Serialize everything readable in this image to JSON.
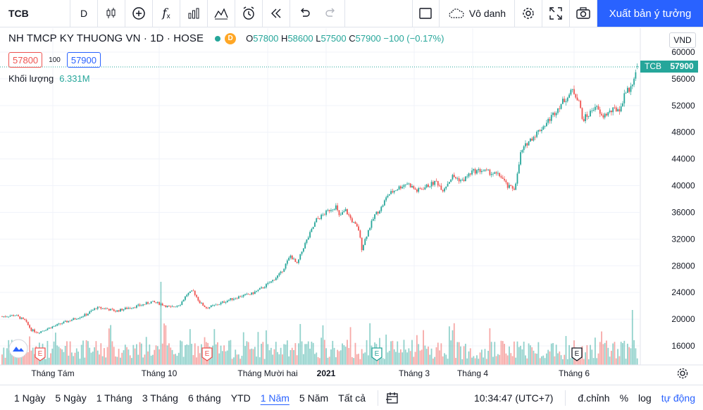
{
  "toolbar": {
    "symbol": "TCB",
    "interval": "D",
    "fx_label": "f",
    "fx_sub": "x",
    "layout_name": "Vô danh",
    "publish_label": "Xuất bản ý tưởng"
  },
  "legend": {
    "title": "NH TMCP KY THUONG VN · 1D · HOSE",
    "d_badge": "D",
    "o_label": "O",
    "o_value": "57800",
    "h_label": "H",
    "h_value": "58600",
    "l_label": "L",
    "l_value": "57500",
    "c_label": "C",
    "c_value": "57900",
    "change": "−100 (−0.17%)",
    "bid": "57800",
    "spread": "100",
    "ask": "57900",
    "volume_label": "Khối lượng",
    "volume_value": "6.331M",
    "currency": "VND"
  },
  "price_axis": {
    "ticks": [
      "60000",
      "56000",
      "52000",
      "48000",
      "44000",
      "40000",
      "36000",
      "32000",
      "28000",
      "24000",
      "20000",
      "16000"
    ],
    "last_symbol": "TCB",
    "last_price": "57900"
  },
  "time_axis": {
    "labels": [
      "Tháng Tám",
      "Tháng 10",
      "Tháng Mười hai",
      "2021",
      "Tháng 3",
      "Tháng 4",
      "Tháng 6"
    ]
  },
  "events": [
    "E",
    "E",
    "E",
    "E"
  ],
  "bottom": {
    "ranges": [
      "1 Ngày",
      "5 Ngày",
      "1 Tháng",
      "3 Tháng",
      "6 tháng",
      "YTD",
      "1 Năm",
      "5 Năm",
      "Tất cả"
    ],
    "active_range": "1 Năm",
    "time": "10:34:47 (UTC+7)",
    "adjust": "đ.chỉnh",
    "percent": "%",
    "log": "log",
    "auto": "tự động"
  },
  "colors": {
    "up": "#26a69a",
    "down": "#ef5350",
    "accent": "#2962ff"
  },
  "chart_data": {
    "type": "candlestick",
    "symbol": "TCB",
    "interval": "1D",
    "ylim": [
      15000,
      61000
    ],
    "x_axis": [
      "Tháng Tám",
      "Tháng 10",
      "Tháng Mười hai",
      "2021",
      "Tháng 3",
      "Tháng 4",
      "Tháng 6"
    ],
    "last": {
      "open": 57800,
      "high": 58600,
      "low": 57500,
      "close": 57900
    },
    "close_path": [
      [
        0,
        20400
      ],
      [
        8,
        20600
      ],
      [
        14,
        19800
      ],
      [
        18,
        18400
      ],
      [
        22,
        18000
      ],
      [
        28,
        18600
      ],
      [
        36,
        19300
      ],
      [
        44,
        20000
      ],
      [
        52,
        20700
      ],
      [
        58,
        21700
      ],
      [
        64,
        21600
      ],
      [
        70,
        21200
      ],
      [
        78,
        21700
      ],
      [
        86,
        22100
      ],
      [
        92,
        22600
      ],
      [
        98,
        22300
      ],
      [
        104,
        21700
      ],
      [
        110,
        22300
      ],
      [
        114,
        23700
      ],
      [
        118,
        24200
      ],
      [
        122,
        22500
      ],
      [
        126,
        21700
      ],
      [
        132,
        22100
      ],
      [
        140,
        22900
      ],
      [
        148,
        23500
      ],
      [
        154,
        23800
      ],
      [
        160,
        24600
      ],
      [
        166,
        25600
      ],
      [
        172,
        26900
      ],
      [
        178,
        29500
      ],
      [
        182,
        28200
      ],
      [
        186,
        30800
      ],
      [
        190,
        32800
      ],
      [
        194,
        34900
      ],
      [
        198,
        35600
      ],
      [
        202,
        36400
      ],
      [
        206,
        36900
      ],
      [
        208,
        35400
      ],
      [
        212,
        36300
      ],
      [
        216,
        34700
      ],
      [
        220,
        33400
      ],
      [
        222,
        30600
      ],
      [
        226,
        33300
      ],
      [
        230,
        35600
      ],
      [
        234,
        36700
      ],
      [
        238,
        38600
      ],
      [
        244,
        39600
      ],
      [
        250,
        40400
      ],
      [
        256,
        39200
      ],
      [
        262,
        39900
      ],
      [
        268,
        40600
      ],
      [
        272,
        39400
      ],
      [
        278,
        41400
      ],
      [
        284,
        40700
      ],
      [
        290,
        42100
      ],
      [
        296,
        42300
      ],
      [
        302,
        41900
      ],
      [
        308,
        41400
      ],
      [
        312,
        39800
      ],
      [
        316,
        39600
      ],
      [
        318,
        41600
      ],
      [
        320,
        44800
      ],
      [
        324,
        46400
      ],
      [
        330,
        47900
      ],
      [
        336,
        49400
      ],
      [
        342,
        51300
      ],
      [
        346,
        52600
      ],
      [
        350,
        53600
      ],
      [
        352,
        54300
      ],
      [
        356,
        52800
      ],
      [
        358,
        49900
      ],
      [
        362,
        50600
      ],
      [
        366,
        52000
      ],
      [
        370,
        50300
      ],
      [
        374,
        50900
      ],
      [
        378,
        51400
      ],
      [
        382,
        51600
      ],
      [
        384,
        53900
      ],
      [
        388,
        54600
      ],
      [
        390,
        56400
      ],
      [
        392,
        57900
      ]
    ]
  }
}
